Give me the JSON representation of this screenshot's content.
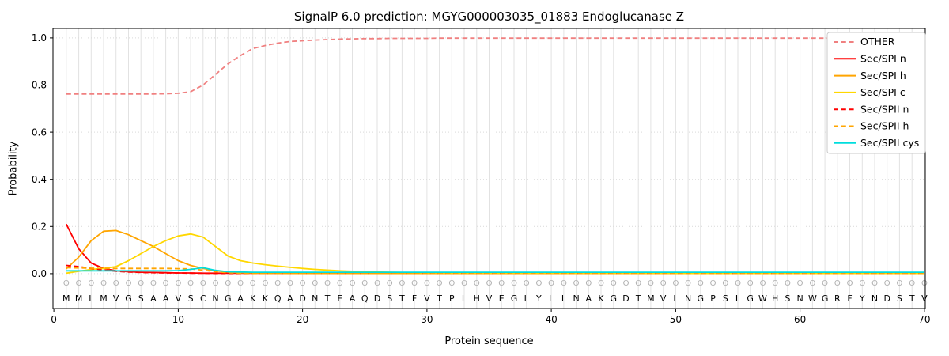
{
  "chart_data": {
    "type": "line",
    "title": "SignalP 6.0 prediction: MGYG000003035_01883 Endoglucanase Z",
    "xlabel": "Protein sequence",
    "ylabel": "Probability",
    "xlim": [
      0,
      70
    ],
    "ylim": [
      -0.148,
      1.04
    ],
    "xticks": [
      0,
      10,
      20,
      30,
      40,
      50,
      60,
      70
    ],
    "yticks": [
      0.0,
      0.2,
      0.4,
      0.6,
      0.8,
      1.0
    ],
    "grid": "vertical line per residue, dotted horizontal at yticks",
    "legend_position": "upper right",
    "sequence": "MMLMVGSAAVSCNGAKKQADNTEAQDSTFVTPLHVEGLYLLNAKGDTMVLNGPSLGWHSNWGRFYNDSTV",
    "per_position_label": "O",
    "colors": {
      "gridline": "#e2e2e2",
      "axis": "#000000",
      "position_label": "#b0b0b0",
      "legend_border": "#c9c9c9"
    },
    "series": [
      {
        "name": "OTHER",
        "color": "#f08080",
        "style": "dashed",
        "values": [
          0.762,
          0.762,
          0.762,
          0.762,
          0.762,
          0.762,
          0.762,
          0.762,
          0.763,
          0.765,
          0.772,
          0.8,
          0.845,
          0.89,
          0.925,
          0.955,
          0.968,
          0.978,
          0.985,
          0.988,
          0.991,
          0.993,
          0.995,
          0.996,
          0.997,
          0.997,
          0.998,
          0.998,
          0.998,
          0.998,
          0.999,
          0.999,
          0.999,
          0.999,
          0.999,
          0.999,
          0.999,
          0.999,
          0.999,
          0.999,
          0.999,
          0.999,
          0.999,
          0.999,
          0.999,
          0.999,
          0.999,
          0.999,
          0.999,
          0.999,
          0.999,
          0.999,
          0.999,
          0.999,
          0.999,
          0.999,
          0.999,
          0.999,
          0.999,
          0.999,
          0.999,
          0.999,
          0.999,
          0.999,
          0.999,
          0.999,
          0.999,
          0.999,
          0.999,
          0.999
        ]
      },
      {
        "name": "Sec/SPI n",
        "color": "#ff0000",
        "style": "solid",
        "values": [
          0.21,
          0.105,
          0.045,
          0.022,
          0.012,
          0.008,
          0.006,
          0.005,
          0.004,
          0.003,
          0.003,
          0.002,
          0.002,
          0.002,
          0.002,
          0.002,
          0.002,
          0.002,
          0.001,
          0.001,
          0.001,
          0.001,
          0.001,
          0.001,
          0.001,
          0.001,
          0.001,
          0.001,
          0.001,
          0.001,
          0.001,
          0.001,
          0.001,
          0.001,
          0.001,
          0.001,
          0.001,
          0.001,
          0.001,
          0.001,
          0.001,
          0.001,
          0.001,
          0.001,
          0.001,
          0.001,
          0.001,
          0.001,
          0.001,
          0.001,
          0.001,
          0.001,
          0.001,
          0.001,
          0.001,
          0.001,
          0.001,
          0.001,
          0.001,
          0.001,
          0.001,
          0.001,
          0.001,
          0.001,
          0.001,
          0.001,
          0.001,
          0.001,
          0.001,
          0.001
        ]
      },
      {
        "name": "Sec/SPI h",
        "color": "#ffa500",
        "style": "solid",
        "values": [
          0.02,
          0.07,
          0.14,
          0.18,
          0.183,
          0.165,
          0.14,
          0.115,
          0.085,
          0.055,
          0.035,
          0.022,
          0.012,
          0.007,
          0.004,
          0.003,
          0.002,
          0.002,
          0.001,
          0.001,
          0.001,
          0.001,
          0.001,
          0.001,
          0.001,
          0.001,
          0.001,
          0.001,
          0.001,
          0.001,
          0.001,
          0.001,
          0.001,
          0.001,
          0.001,
          0.001,
          0.001,
          0.001,
          0.001,
          0.001,
          0.001,
          0.001,
          0.001,
          0.001,
          0.001,
          0.001,
          0.001,
          0.001,
          0.001,
          0.001,
          0.001,
          0.001,
          0.001,
          0.001,
          0.001,
          0.001,
          0.001,
          0.001,
          0.001,
          0.001,
          0.001,
          0.001,
          0.001,
          0.001,
          0.001,
          0.001,
          0.001,
          0.001,
          0.001,
          0.001
        ]
      },
      {
        "name": "Sec/SPI c",
        "color": "#ffd700",
        "style": "solid",
        "values": [
          0.002,
          0.01,
          0.018,
          0.022,
          0.03,
          0.055,
          0.085,
          0.115,
          0.14,
          0.16,
          0.168,
          0.155,
          0.115,
          0.075,
          0.055,
          0.045,
          0.038,
          0.032,
          0.027,
          0.022,
          0.018,
          0.015,
          0.012,
          0.01,
          0.008,
          0.007,
          0.006,
          0.005,
          0.005,
          0.004,
          0.004,
          0.003,
          0.003,
          0.003,
          0.003,
          0.003,
          0.003,
          0.003,
          0.003,
          0.003,
          0.002,
          0.002,
          0.002,
          0.002,
          0.002,
          0.002,
          0.002,
          0.002,
          0.002,
          0.002,
          0.001,
          0.001,
          0.001,
          0.001,
          0.001,
          0.001,
          0.001,
          0.001,
          0.001,
          0.001,
          0.001,
          0.001,
          0.001,
          0.001,
          0.001,
          0.001,
          0.001,
          0.001,
          0.001,
          0.001
        ]
      },
      {
        "name": "Sec/SPII n",
        "color": "#ff0000",
        "style": "dashed",
        "values": [
          0.035,
          0.03,
          0.022,
          0.015,
          0.01,
          0.007,
          0.005,
          0.004,
          0.003,
          0.003,
          0.002,
          0.002,
          0.001,
          0.001,
          0.001,
          0.001,
          0.001,
          0.001,
          0.001,
          0.001,
          0.001,
          0.001,
          0.001,
          0.001,
          0.001,
          0.001,
          0.001,
          0.001,
          0.001,
          0.001,
          0.001,
          0.001,
          0.001,
          0.001,
          0.001,
          0.001,
          0.001,
          0.001,
          0.001,
          0.001,
          0.001,
          0.001,
          0.001,
          0.001,
          0.001,
          0.001,
          0.001,
          0.001,
          0.001,
          0.001,
          0.001,
          0.001,
          0.001,
          0.001,
          0.001,
          0.001,
          0.001,
          0.001,
          0.001,
          0.001,
          0.001,
          0.001,
          0.001,
          0.001,
          0.001,
          0.001,
          0.001,
          0.001,
          0.001,
          0.001
        ]
      },
      {
        "name": "Sec/SPII h",
        "color": "#ffa500",
        "style": "dashed",
        "values": [
          0.025,
          0.024,
          0.023,
          0.022,
          0.022,
          0.022,
          0.022,
          0.022,
          0.022,
          0.021,
          0.02,
          0.015,
          0.008,
          0.004,
          0.002,
          0.001,
          0.001,
          0.001,
          0.001,
          0.001,
          0.001,
          0.001,
          0.001,
          0.001,
          0.001,
          0.001,
          0.001,
          0.001,
          0.001,
          0.001,
          0.001,
          0.001,
          0.001,
          0.001,
          0.001,
          0.001,
          0.001,
          0.001,
          0.001,
          0.001,
          0.001,
          0.001,
          0.001,
          0.001,
          0.001,
          0.001,
          0.001,
          0.001,
          0.001,
          0.001,
          0.001,
          0.001,
          0.001,
          0.001,
          0.001,
          0.001,
          0.001,
          0.001,
          0.001,
          0.001,
          0.001,
          0.001,
          0.001,
          0.001,
          0.001,
          0.001,
          0.001,
          0.001,
          0.001,
          0.001
        ]
      },
      {
        "name": "Sec/SPII cys",
        "color": "#00dddd",
        "style": "solid",
        "values": [
          0.012,
          0.012,
          0.012,
          0.012,
          0.012,
          0.012,
          0.012,
          0.012,
          0.012,
          0.013,
          0.018,
          0.025,
          0.014,
          0.008,
          0.007,
          0.006,
          0.006,
          0.006,
          0.006,
          0.006,
          0.006,
          0.006,
          0.006,
          0.006,
          0.006,
          0.006,
          0.006,
          0.006,
          0.006,
          0.006,
          0.006,
          0.006,
          0.006,
          0.006,
          0.006,
          0.006,
          0.006,
          0.006,
          0.006,
          0.006,
          0.006,
          0.006,
          0.006,
          0.006,
          0.006,
          0.006,
          0.006,
          0.006,
          0.006,
          0.006,
          0.006,
          0.006,
          0.006,
          0.006,
          0.006,
          0.006,
          0.006,
          0.006,
          0.006,
          0.006,
          0.006,
          0.006,
          0.006,
          0.006,
          0.006,
          0.006,
          0.006,
          0.006,
          0.006,
          0.006
        ]
      }
    ]
  }
}
